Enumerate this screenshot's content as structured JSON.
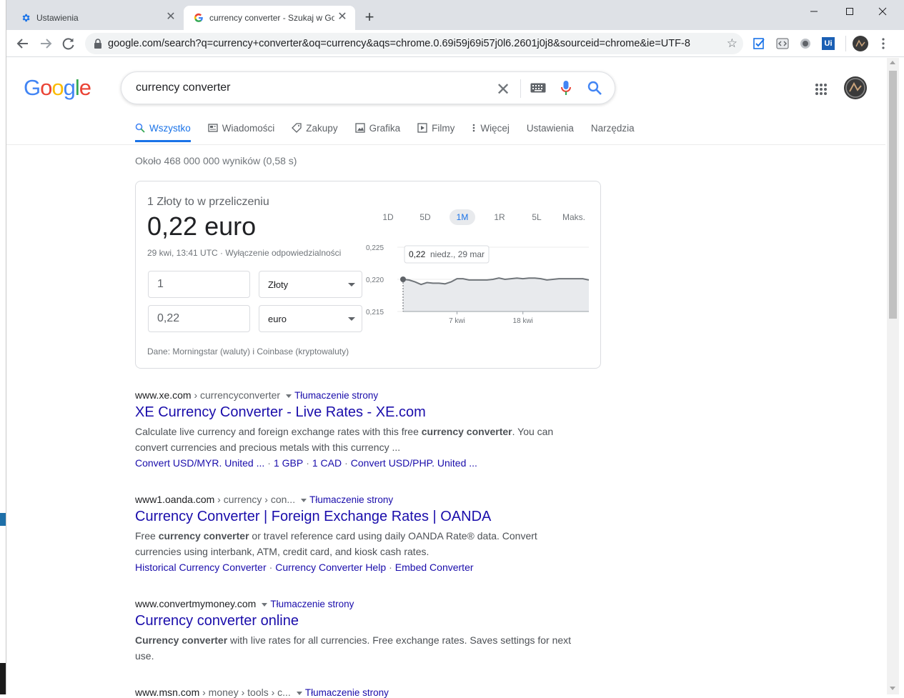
{
  "browser": {
    "tabs": [
      {
        "title": "Ustawienia",
        "icon": "gear-icon",
        "active": false
      },
      {
        "title": "currency converter - Szukaj w Go",
        "icon": "google-favicon-icon",
        "active": true
      }
    ],
    "new_tab_symbol": "+",
    "close_symbol": "✕",
    "url": "google.com/search?q=currency+converter&oq=currency&aqs=chrome.0.69i59j69i57j0l6.2601j0j8&sourceid=chrome&ie=UTF-8",
    "extensions": [
      "checklist-extension-icon",
      "code-extension-icon",
      "record-extension-icon",
      "ui-extension-icon"
    ],
    "ext_ui_label": "Ui"
  },
  "search": {
    "logo": [
      "G",
      "o",
      "o",
      "g",
      "l",
      "e"
    ],
    "logo_colors": [
      "#4285f4",
      "#ea4335",
      "#fbbc05",
      "#4285f4",
      "#34a853",
      "#ea4335"
    ],
    "query": "currency converter",
    "tabs": [
      "Wszystko",
      "Wiadomości",
      "Zakupy",
      "Grafika",
      "Filmy",
      "Więcej",
      "Ustawienia",
      "Narzędzia"
    ],
    "active_tab": "Wszystko",
    "stats": "Około 468 000 000 wyników (0,58 s)"
  },
  "converter": {
    "subtitle": "1 Złoty to w przeliczeniu",
    "result": "0,22 euro",
    "timestamp": "29 kwi, 13:41 UTC · Wyłączenie odpowiedzialności",
    "from_amount": "1",
    "from_currency": "Złoty",
    "to_amount": "0,22",
    "to_currency": "euro",
    "source": "Dane: Morningstar (waluty) i Coinbase (kryptowaluty)",
    "ranges": [
      "1D",
      "5D",
      "1M",
      "1R",
      "5L",
      "Maks."
    ],
    "active_range": "1M",
    "accent": "#1a73e8"
  },
  "chart_data": {
    "type": "area",
    "title": "",
    "yticks": [
      "0,225",
      "0,220",
      "0,215"
    ],
    "ylim": [
      0.215,
      0.225
    ],
    "xticks": [
      "7 kwi",
      "18 kwi"
    ],
    "tooltip_value": "0,22",
    "tooltip_date": "niedz., 29 mar",
    "x": [
      "29 mar",
      "30 mar",
      "31 mar",
      "1 kwi",
      "2 kwi",
      "3 kwi",
      "4 kwi",
      "5 kwi",
      "6 kwi",
      "7 kwi",
      "8 kwi",
      "9 kwi",
      "10 kwi",
      "11 kwi",
      "12 kwi",
      "13 kwi",
      "14 kwi",
      "15 kwi",
      "16 kwi",
      "17 kwi",
      "18 kwi",
      "19 kwi",
      "20 kwi",
      "21 kwi",
      "22 kwi",
      "23 kwi",
      "24 kwi",
      "25 kwi",
      "26 kwi",
      "27 kwi",
      "28 kwi",
      "29 kwi"
    ],
    "values": [
      0.22,
      0.2199,
      0.2196,
      0.2192,
      0.2195,
      0.2194,
      0.2194,
      0.2193,
      0.2196,
      0.2201,
      0.2201,
      0.2199,
      0.2199,
      0.2199,
      0.2199,
      0.22,
      0.2202,
      0.22,
      0.2201,
      0.2202,
      0.2201,
      0.2202,
      0.2202,
      0.2201,
      0.2199,
      0.22,
      0.2201,
      0.2201,
      0.2201,
      0.2201,
      0.2201,
      0.2199
    ],
    "line_color": "#70757a",
    "fill_color": "#e8eaed",
    "grid": true
  },
  "results": [
    {
      "domain": "www.xe.com",
      "path": " › currencyconverter",
      "translate": "Tłumaczenie strony",
      "title": "XE Currency Converter - Live Rates - XE.com",
      "snippet_a": "Calculate live currency and foreign exchange rates with this free ",
      "snippet_b": "currency converter",
      "snippet_c": ". You can convert currencies and precious metals with this currency ...",
      "links": [
        "Convert USD/MYR. United ...",
        "1 GBP",
        "1 CAD",
        "Convert USD/PHP. United ..."
      ]
    },
    {
      "domain": "www1.oanda.com",
      "path": " › currency › con...",
      "translate": "Tłumaczenie strony",
      "title": "Currency Converter | Foreign Exchange Rates | OANDA",
      "snippet_a": "Free ",
      "snippet_b": "currency converter",
      "snippet_c": " or travel reference card using daily OANDA Rate® data. Convert currencies using interbank, ATM, credit card, and kiosk cash rates.",
      "links": [
        "Historical Currency Converter",
        "Currency Converter Help",
        "Embed Converter"
      ]
    },
    {
      "domain": "www.convertmymoney.com",
      "path": "",
      "translate": "Tłumaczenie strony",
      "title": "Currency converter online",
      "snippet_a": "",
      "snippet_b": "Currency converter",
      "snippet_c": " with live rates for all currencies. Free exchange rates. Saves settings for next use.",
      "links": []
    },
    {
      "domain": "www.msn.com",
      "path": " › money › tools › c...",
      "translate": "Tłumaczenie strony"
    }
  ],
  "link_separator": "·"
}
